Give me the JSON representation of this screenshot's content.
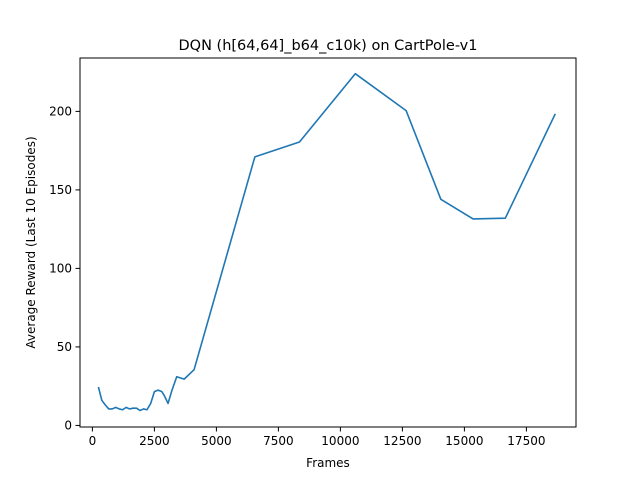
{
  "chart_data": {
    "type": "line",
    "title": "DQN (h[64,64]_b64_c10k) on CartPole-v1",
    "xlabel": "Frames",
    "ylabel": "Average Reward (Last 10 Episodes)",
    "xlim": [
      -500,
      19500
    ],
    "ylim": [
      -1,
      234
    ],
    "x_ticks": [
      0,
      2500,
      5000,
      7500,
      10000,
      12500,
      15000,
      17500
    ],
    "x_tick_labels": [
      "0",
      "2500",
      "5000",
      "7500",
      "10000",
      "12500",
      "15000",
      "17500"
    ],
    "y_ticks": [
      0,
      50,
      100,
      150,
      200
    ],
    "y_tick_labels": [
      "0",
      "50",
      "100",
      "150",
      "200"
    ],
    "grid": false,
    "line_color": "#1f77b4",
    "series": [
      {
        "x": [
          250,
          380,
          520,
          660,
          800,
          940,
          1080,
          1220,
          1360,
          1500,
          1640,
          1780,
          1920,
          2060,
          2200,
          2350,
          2500,
          2650,
          2800,
          2900,
          3050,
          3200,
          3400,
          3700,
          4100,
          6550,
          8350,
          10600,
          12650,
          14050,
          15350,
          16650,
          18650
        ],
        "y": [
          24,
          16,
          13,
          10.5,
          10.5,
          11.5,
          10.5,
          10,
          11.5,
          10.5,
          11,
          11,
          9.5,
          10.5,
          10,
          14,
          21.5,
          22.5,
          21.5,
          19,
          14,
          22,
          31,
          29.5,
          35.5,
          171,
          180.5,
          224,
          200.5,
          144,
          131.5,
          132,
          198
        ]
      }
    ]
  }
}
